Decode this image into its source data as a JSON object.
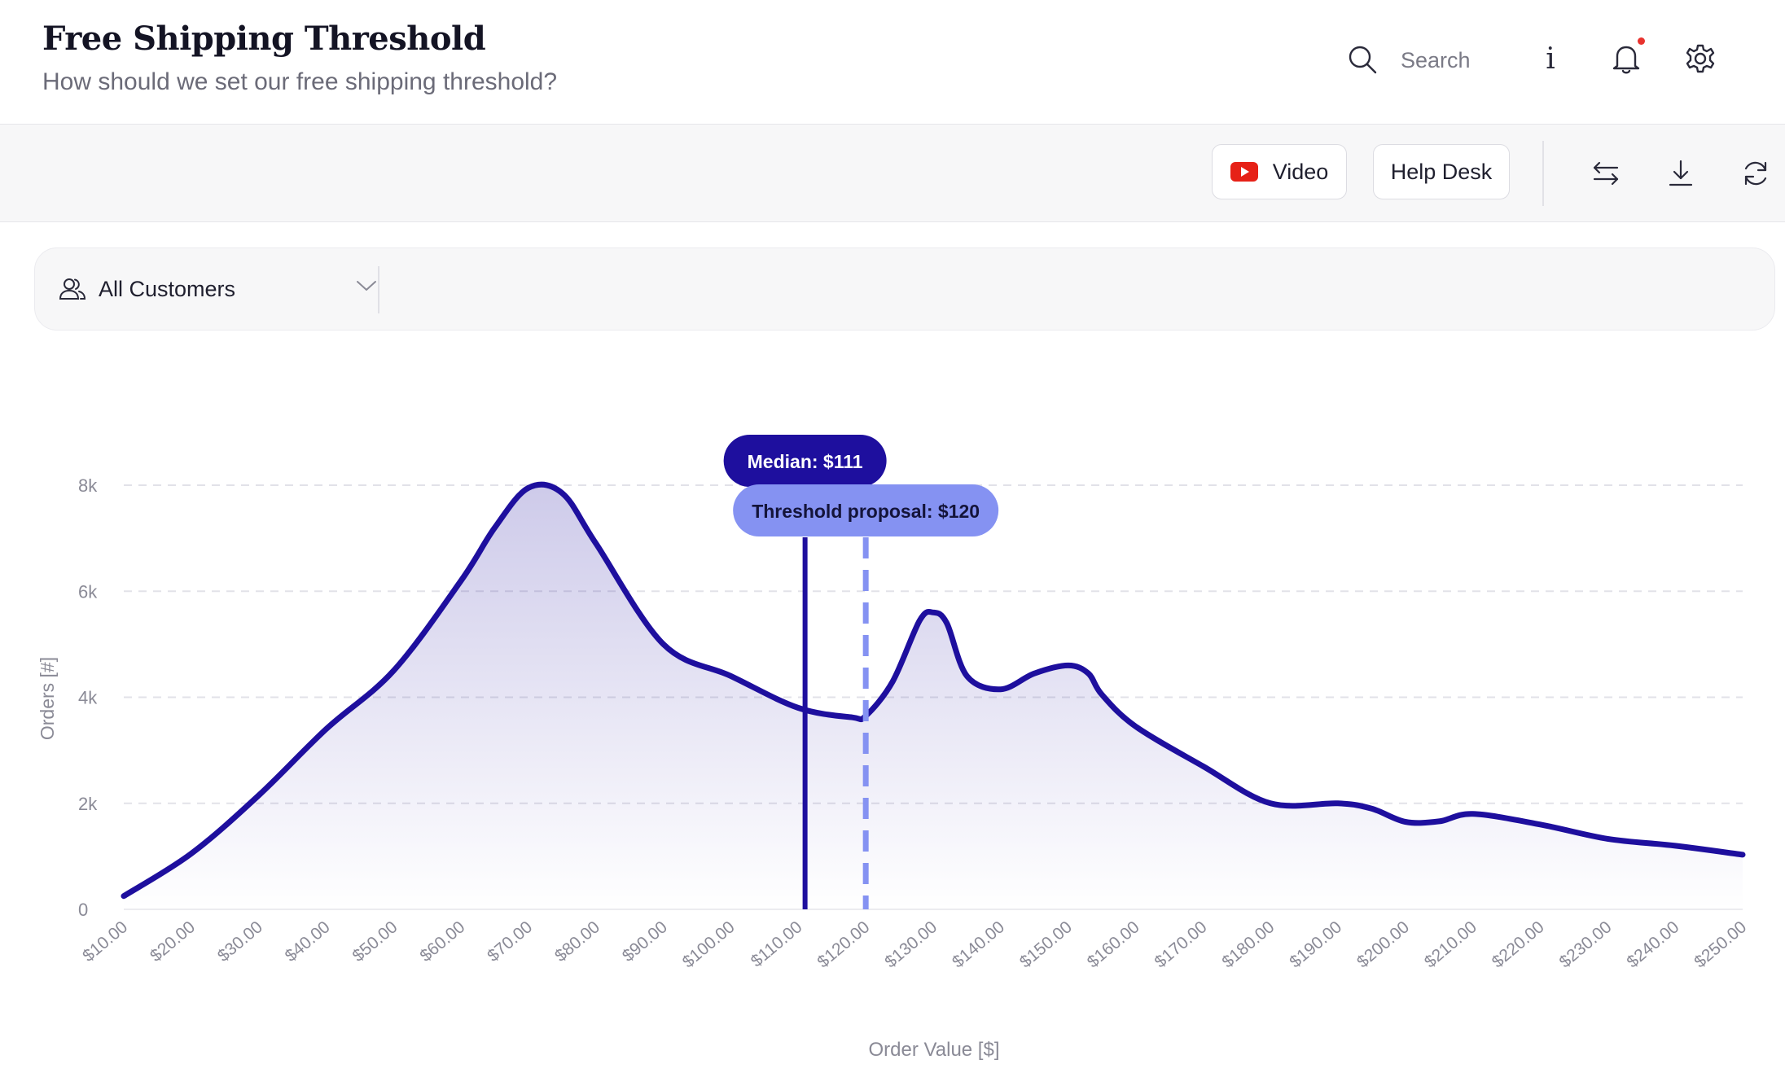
{
  "header": {
    "title": "Free Shipping Threshold",
    "subtitle": "How should we set our free shipping threshold?",
    "search_label": "Search",
    "info_glyph": "i"
  },
  "toolbar": {
    "video_label": "Video",
    "help_label": "Help Desk"
  },
  "filter": {
    "customer_segment": "All Customers"
  },
  "colors": {
    "accent": "#1e0f9e",
    "threshold": "#8592f2",
    "notification_dot": "#e8322e",
    "youtube_red": "#e62117"
  },
  "chart_data": {
    "type": "area",
    "xlabel": "Order Value [$]",
    "ylabel": "Orders [#]",
    "ylim": [
      0,
      8000
    ],
    "y_ticks": [
      0,
      2000,
      4000,
      6000,
      8000
    ],
    "y_tick_labels": [
      "0",
      "2k",
      "4k",
      "6k",
      "8k"
    ],
    "x_tick_labels": [
      "$10.00",
      "$20.00",
      "$30.00",
      "$40.00",
      "$50.00",
      "$60.00",
      "$70.00",
      "$80.00",
      "$90.00",
      "$100.00",
      "$110.00",
      "$120.00",
      "$130.00",
      "$140.00",
      "$150.00",
      "$160.00",
      "$170.00",
      "$180.00",
      "$190.00",
      "$200.00",
      "$210.00",
      "$220.00",
      "$230.00",
      "$240.00",
      "$250.00"
    ],
    "x": [
      10,
      20,
      30,
      40,
      50,
      60,
      65,
      70,
      75,
      80,
      90,
      100,
      110,
      118,
      120,
      124,
      128,
      130,
      132,
      135,
      140,
      145,
      150,
      153,
      155,
      160,
      170,
      180,
      190,
      195,
      200,
      205,
      210,
      220,
      230,
      240,
      250
    ],
    "values": [
      250,
      1050,
      2150,
      3400,
      4500,
      6200,
      7200,
      7950,
      7850,
      6900,
      5000,
      4400,
      3800,
      3620,
      3650,
      4300,
      5450,
      5600,
      5400,
      4400,
      4150,
      4450,
      4600,
      4450,
      4050,
      3450,
      2700,
      2000,
      2000,
      1900,
      1650,
      1660,
      1800,
      1600,
      1330,
      1200,
      1030
    ],
    "grid": true,
    "markers": [
      {
        "label": "Median: $111",
        "x": 111,
        "style": "solid"
      },
      {
        "label": "Threshold proposal: $120",
        "x": 120,
        "style": "dashed"
      }
    ]
  }
}
